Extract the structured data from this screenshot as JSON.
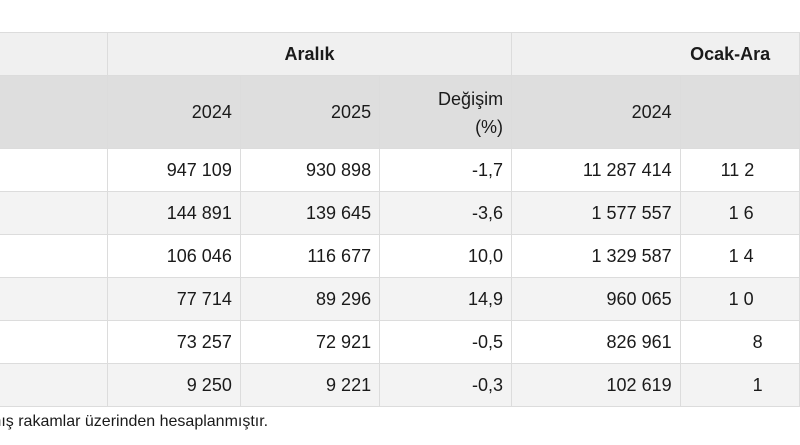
{
  "table": {
    "groups": {
      "aralik": "Aralık",
      "ocak_aralik": "Ocak-Ara"
    },
    "headers": {
      "y2024": "2024",
      "y2025": "2025",
      "change_line1": "Değişim",
      "change_line2": "(%)",
      "cum2024": "2024"
    },
    "rows": [
      {
        "v2024": "947 109",
        "v2025": "930 898",
        "change": "-1,7",
        "cum2024": "11 287 414",
        "cum2025": "11 2"
      },
      {
        "v2024": "144 891",
        "v2025": "139 645",
        "change": "-3,6",
        "cum2024": "1 577 557",
        "cum2025": "1 6"
      },
      {
        "v2024": "106 046",
        "v2025": "116 677",
        "change": "10,0",
        "cum2024": "1 329 587",
        "cum2025": "1 4"
      },
      {
        "v2024": "77 714",
        "v2025": "89 296",
        "change": "14,9",
        "cum2024": "960 065",
        "cum2025": "1 0"
      },
      {
        "v2024": "73 257",
        "v2025": "72 921",
        "change": "-0,5",
        "cum2024": "826 961",
        "cum2025": "8"
      },
      {
        "v2024": "9 250",
        "v2025": "9 221",
        "change": "-0,3",
        "cum2024": "102 619",
        "cum2025": "1"
      }
    ]
  },
  "footnote": "mış rakamlar üzerinden hesaplanmıştır."
}
